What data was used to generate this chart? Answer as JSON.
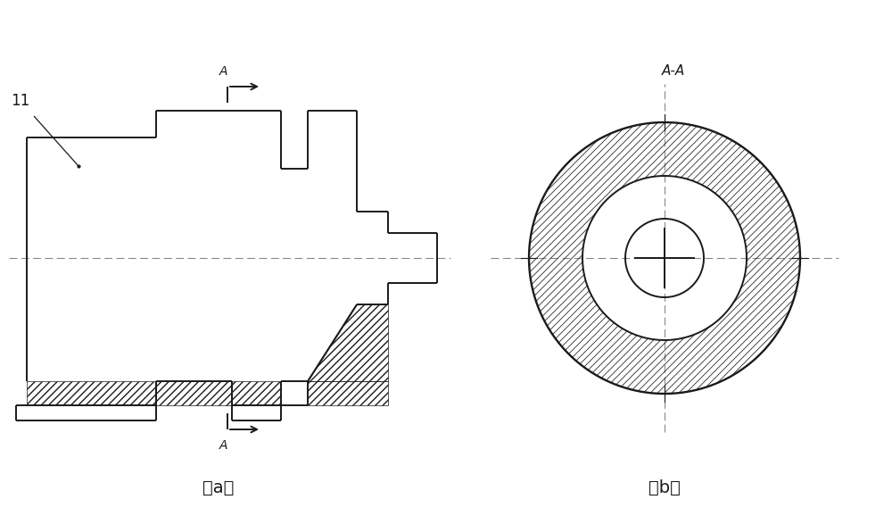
{
  "bg_color": "#ffffff",
  "line_color": "#1a1a1a",
  "label_11_text": "11",
  "label_a_text": "A",
  "label_aa_text": "A-A",
  "label_a_bottom": "A",
  "label_fig_a": "（a）",
  "label_fig_b": "（b）"
}
